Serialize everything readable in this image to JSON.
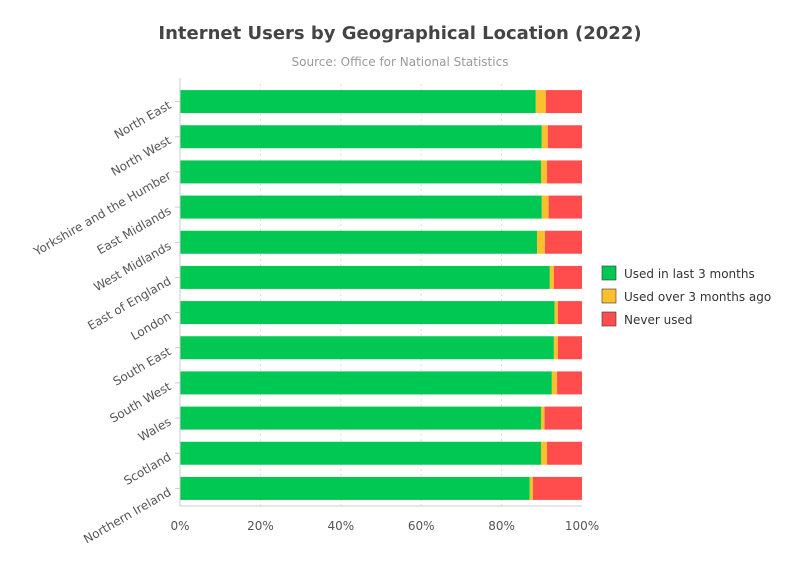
{
  "chart_data": {
    "type": "bar",
    "orientation": "horizontal",
    "stacked": true,
    "percent_stacked": true,
    "title": "Internet Users by Geographical Location (2022)",
    "subtitle": "Source: Office for National Statistics",
    "categories": [
      "North East",
      "North West",
      "Yorkshire and the Humber",
      "East Midlands",
      "West Midlands",
      "East of England",
      "London",
      "South East",
      "South West",
      "Wales",
      "Scotland",
      "Northern Ireland"
    ],
    "series": [
      {
        "name": "Used in last 3 months",
        "color": "#00c853",
        "values": [
          88.5,
          90.0,
          89.8,
          90.0,
          88.8,
          92.0,
          93.2,
          93.0,
          92.5,
          89.8,
          89.8,
          87.0
        ]
      },
      {
        "name": "Used over 3 months ago",
        "color": "#fbc02d",
        "values": [
          2.5,
          1.5,
          1.5,
          1.7,
          2.0,
          1.0,
          0.8,
          1.0,
          1.3,
          0.9,
          1.5,
          0.8
        ]
      },
      {
        "name": "Never used",
        "color": "#ff4d4d",
        "values": [
          9.0,
          8.5,
          8.7,
          8.3,
          9.2,
          7.0,
          6.0,
          6.0,
          6.2,
          9.3,
          8.7,
          12.2
        ]
      }
    ],
    "xaxis": {
      "ticks": [
        "0%",
        "20%",
        "40%",
        "60%",
        "80%",
        "100%"
      ],
      "range": [
        0,
        100
      ]
    },
    "grid": true,
    "legend_position": "right"
  }
}
